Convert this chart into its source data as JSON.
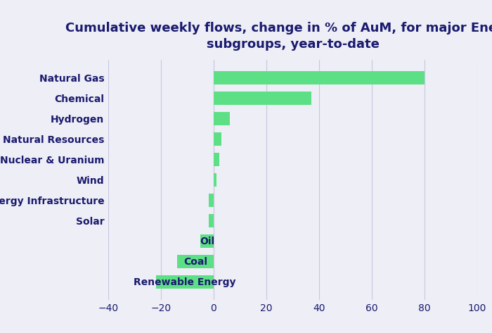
{
  "title": "Cumulative weekly flows, change in % of AuM, for major Energy\nsubgroups, year-to-date",
  "categories": [
    "Renewable Energy",
    "Coal",
    "Oil",
    "Solar",
    "Energy Infrastructure",
    "Wind",
    "Nuclear & Uranium",
    "Natural Resources",
    "Hydrogen",
    "Chemical",
    "Natural Gas"
  ],
  "values": [
    -22,
    -14,
    -5,
    -2,
    -2,
    1,
    2,
    3,
    6,
    37,
    80
  ],
  "bar_color": "#5de085",
  "background_color": "#eeeef7",
  "title_color": "#1a1a6e",
  "label_color": "#1a1a6e",
  "tick_color": "#1a1a6e",
  "xlim": [
    -40,
    100
  ],
  "xticks": [
    -40,
    -20,
    0,
    20,
    40,
    60,
    80,
    100
  ],
  "grid_color": "#c8c8e0",
  "title_fontsize": 13,
  "label_fontsize": 10,
  "inside_label_threshold": -4
}
